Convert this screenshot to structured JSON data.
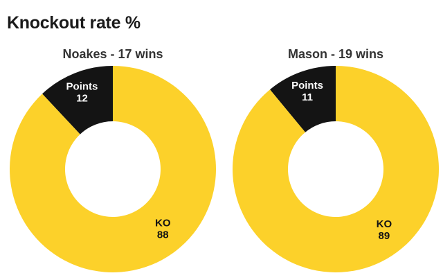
{
  "title": "Knockout rate %",
  "colors": {
    "ko": "#fcd12a",
    "points": "#141414",
    "background": "#ffffff"
  },
  "chart_data": [
    {
      "type": "pie",
      "subtitle": "Noakes - 17 wins",
      "slices": [
        {
          "label": "Points",
          "value": 12,
          "color": "#141414"
        },
        {
          "label": "KO",
          "value": 88,
          "color": "#fcd12a"
        }
      ]
    },
    {
      "type": "pie",
      "subtitle": "Mason - 19 wins",
      "slices": [
        {
          "label": "Points",
          "value": 11,
          "color": "#141414"
        },
        {
          "label": "KO",
          "value": 89,
          "color": "#fcd12a"
        }
      ]
    }
  ]
}
